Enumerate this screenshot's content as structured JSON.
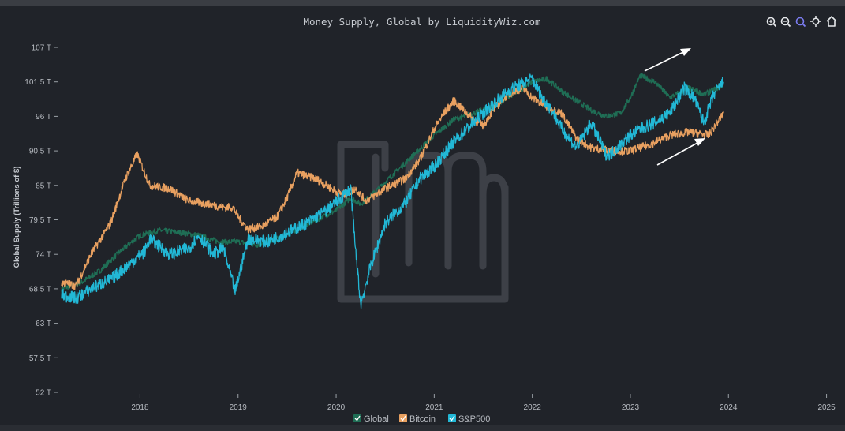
{
  "toolbar": {
    "icons": [
      "zoom-in-icon",
      "zoom-out-icon",
      "zoom-select-icon",
      "pan-icon",
      "reset-home-icon"
    ],
    "active_color": "#7b7cf0",
    "icon_color": "#e6e8eb"
  },
  "colors": {
    "global": "#1f6e55",
    "bitcoin": "#e8a060",
    "sp500": "#22b8d6",
    "background": "#202329",
    "watermark": "#3d4047",
    "arrows": "#ffffff"
  },
  "chart_data": {
    "type": "line",
    "title": "Money Supply, Global by LiquidityWiz.com",
    "ylabel": "Global Supply (Trillions of $)",
    "xlabel": "",
    "ylim": [
      52,
      107
    ],
    "yticks": [
      52,
      57.5,
      63,
      68.5,
      74,
      79.5,
      85,
      90.5,
      96,
      101.5,
      107
    ],
    "ytick_labels": [
      "52 T",
      "57.5 T",
      "63 T",
      "68.5 T",
      "74 T",
      "79.5 T",
      "85 T",
      "90.5 T",
      "96 T",
      "101.5 T",
      "107 T"
    ],
    "xlim": [
      2017.2,
      2025.1
    ],
    "xticks": [
      2018,
      2019,
      2020,
      2021,
      2022,
      2023,
      2024,
      2025
    ],
    "xtick_labels": [
      "2018",
      "2019",
      "2020",
      "2021",
      "2022",
      "2023",
      "2024",
      "2025"
    ],
    "grid": false,
    "legend_position": "bottom",
    "series": [
      {
        "name": "Global",
        "color": "#1f6e55",
        "x": [
          2017.2,
          2017.4,
          2017.6,
          2017.8,
          2018.0,
          2018.2,
          2018.4,
          2018.6,
          2018.8,
          2019.0,
          2019.2,
          2019.4,
          2019.6,
          2019.8,
          2020.0,
          2020.15,
          2020.25,
          2020.4,
          2020.6,
          2020.8,
          2021.0,
          2021.2,
          2021.4,
          2021.6,
          2021.8,
          2022.0,
          2022.15,
          2022.3,
          2022.45,
          2022.6,
          2022.75,
          2022.9,
          2023.0,
          2023.1,
          2023.25,
          2023.4,
          2023.6,
          2023.75,
          2023.95
        ],
        "y": [
          68.5,
          69.5,
          71.5,
          74.5,
          77.0,
          77.8,
          77.5,
          77.0,
          76.0,
          76.0,
          75.5,
          76.5,
          78.0,
          79.5,
          81.0,
          83.0,
          82.0,
          84.0,
          87.0,
          90.0,
          93.0,
          95.5,
          96.5,
          97.5,
          99.5,
          101.5,
          102.0,
          100.0,
          98.5,
          97.0,
          96.0,
          96.5,
          99.0,
          102.5,
          101.5,
          99.0,
          100.5,
          99.5,
          101.0
        ]
      },
      {
        "name": "Bitcoin",
        "color": "#e8a060",
        "x": [
          2017.2,
          2017.35,
          2017.5,
          2017.7,
          2017.85,
          2017.97,
          2018.1,
          2018.3,
          2018.5,
          2018.7,
          2018.85,
          2018.95,
          2019.0,
          2019.1,
          2019.25,
          2019.4,
          2019.5,
          2019.6,
          2019.8,
          2020.0,
          2020.1,
          2020.2,
          2020.3,
          2020.5,
          2020.7,
          2020.85,
          2021.0,
          2021.1,
          2021.2,
          2021.3,
          2021.4,
          2021.5,
          2021.6,
          2021.75,
          2021.9,
          2022.0,
          2022.15,
          2022.3,
          2022.45,
          2022.6,
          2022.8,
          2023.0,
          2023.2,
          2023.4,
          2023.6,
          2023.8,
          2023.95
        ],
        "y": [
          69.5,
          69.0,
          74.0,
          79.0,
          86.0,
          90.0,
          85.0,
          84.5,
          82.5,
          82.0,
          81.5,
          81.5,
          80.0,
          78.0,
          78.5,
          80.0,
          83.0,
          87.0,
          86.0,
          84.0,
          83.5,
          84.5,
          82.5,
          84.5,
          86.0,
          89.0,
          94.0,
          96.5,
          98.5,
          97.0,
          95.5,
          94.5,
          97.0,
          99.5,
          100.5,
          99.0,
          97.5,
          96.5,
          92.5,
          91.0,
          90.5,
          90.5,
          91.5,
          93.0,
          93.5,
          93.0,
          96.5
        ]
      },
      {
        "name": "S&P500",
        "color": "#22b8d6",
        "x": [
          2017.2,
          2017.35,
          2017.5,
          2017.7,
          2017.9,
          2018.05,
          2018.1,
          2018.3,
          2018.5,
          2018.6,
          2018.75,
          2018.85,
          2018.97,
          2019.1,
          2019.3,
          2019.5,
          2019.7,
          2019.9,
          2020.05,
          2020.15,
          2020.19,
          2020.25,
          2020.35,
          2020.5,
          2020.7,
          2020.85,
          2021.0,
          2021.2,
          2021.4,
          2021.6,
          2021.8,
          2022.0,
          2022.1,
          2022.2,
          2022.3,
          2022.45,
          2022.6,
          2022.75,
          2022.8,
          2022.9,
          2023.0,
          2023.1,
          2023.25,
          2023.4,
          2023.55,
          2023.65,
          2023.75,
          2023.85,
          2023.95
        ],
        "y": [
          67.5,
          67.0,
          68.5,
          70.0,
          72.5,
          74.5,
          76.5,
          74.0,
          75.0,
          77.0,
          74.0,
          75.0,
          68.0,
          76.5,
          76.0,
          77.5,
          79.0,
          81.0,
          83.0,
          84.5,
          76.0,
          66.0,
          72.0,
          79.0,
          82.0,
          86.0,
          88.0,
          92.0,
          95.0,
          98.0,
          100.5,
          102.0,
          99.0,
          97.0,
          94.0,
          91.0,
          95.0,
          90.0,
          90.0,
          91.5,
          93.0,
          94.0,
          95.0,
          96.5,
          100.5,
          99.0,
          95.0,
          99.5,
          101.5
        ]
      }
    ]
  }
}
